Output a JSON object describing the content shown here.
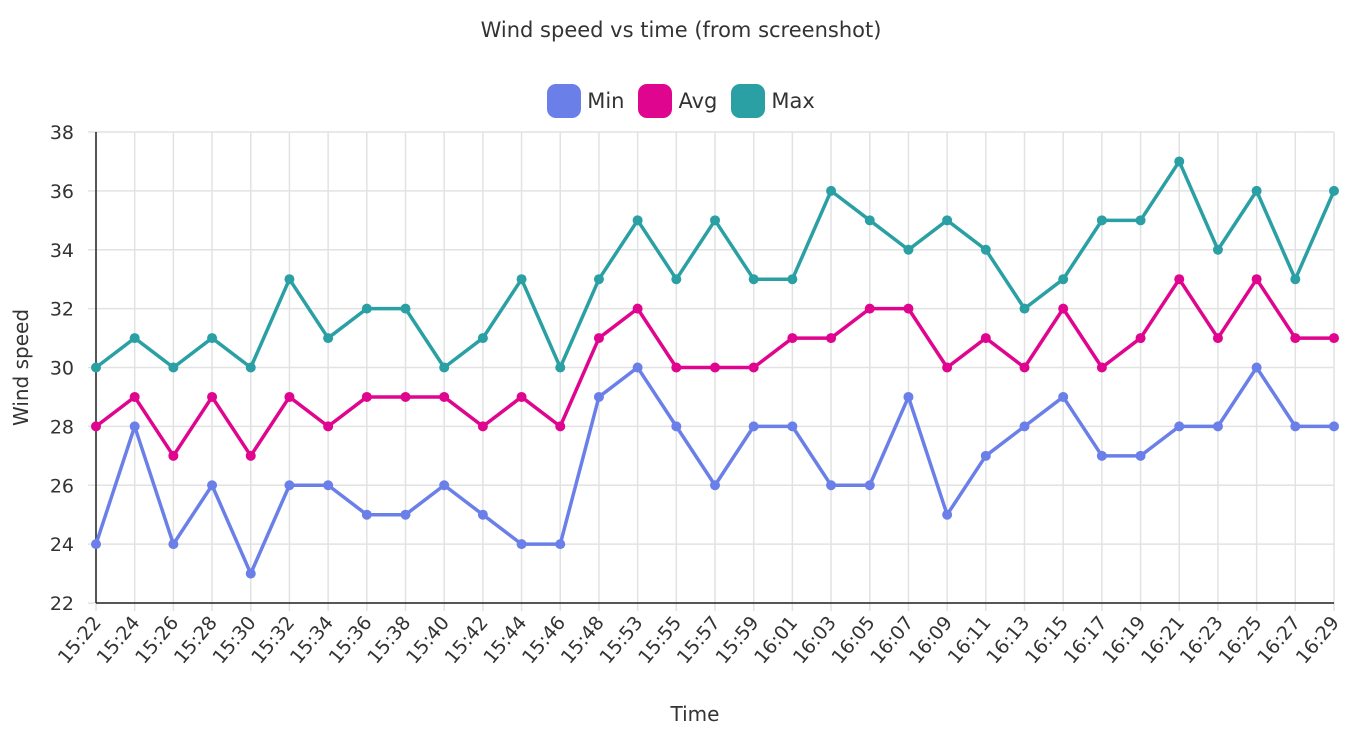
{
  "chart_data": {
    "type": "line",
    "title": "Wind speed vs time (from screenshot)",
    "xlabel": "Time",
    "ylabel": "Wind speed",
    "ylim": [
      22,
      38
    ],
    "yticks": [
      22,
      24,
      26,
      28,
      30,
      32,
      34,
      36,
      38
    ],
    "grid": true,
    "legend_position": "top-center",
    "x": [
      "15:22",
      "15:24",
      "15:26",
      "15:28",
      "15:30",
      "15:32",
      "15:34",
      "15:36",
      "15:38",
      "15:40",
      "15:42",
      "15:44",
      "15:46",
      "15:48",
      "15:53",
      "15:55",
      "15:57",
      "15:59",
      "16:01",
      "16:03",
      "16:05",
      "16:07",
      "16:09",
      "16:11",
      "16:13",
      "16:15",
      "16:17",
      "16:19",
      "16:21",
      "16:23",
      "16:25",
      "16:27",
      "16:29"
    ],
    "series": [
      {
        "name": "Min",
        "color": "#6b7fe8",
        "values": [
          24,
          28,
          24,
          26,
          23,
          26,
          26,
          25,
          25,
          26,
          25,
          24,
          24,
          29,
          30,
          28,
          26,
          28,
          28,
          26,
          26,
          29,
          25,
          27,
          28,
          29,
          27,
          27,
          28,
          28,
          30,
          28,
          28
        ]
      },
      {
        "name": "Avg",
        "color": "#e0058e",
        "values": [
          28,
          29,
          27,
          29,
          27,
          29,
          28,
          29,
          29,
          29,
          28,
          29,
          28,
          31,
          32,
          30,
          30,
          30,
          31,
          31,
          32,
          32,
          30,
          31,
          30,
          32,
          30,
          31,
          33,
          31,
          33,
          31,
          31
        ]
      },
      {
        "name": "Max",
        "color": "#2aa0a4",
        "values": [
          30,
          31,
          30,
          31,
          30,
          33,
          31,
          32,
          32,
          30,
          31,
          33,
          30,
          33,
          35,
          33,
          35,
          33,
          33,
          36,
          35,
          34,
          35,
          34,
          32,
          33,
          35,
          35,
          37,
          34,
          36,
          33,
          36
        ]
      }
    ]
  }
}
